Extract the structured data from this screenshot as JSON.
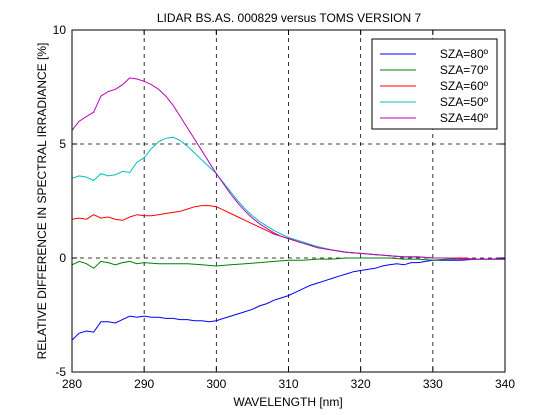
{
  "chart_data": {
    "type": "line",
    "title": "LIDAR BS.AS. 000829 versus TOMS VERSION 7",
    "xlabel": "WAVELENGTH [nm]",
    "ylabel": "RELATIVE DIFFERENCE IN SPECTRAL IRRADIANCE [%]",
    "xlim": [
      280,
      340
    ],
    "ylim": [
      -5,
      10
    ],
    "xticks": [
      280,
      290,
      300,
      310,
      320,
      330,
      340
    ],
    "yticks": [
      -5,
      0,
      5,
      10
    ],
    "x_grid": "dashed",
    "y_grid_lines": [
      0,
      5
    ],
    "legend_position": "top-right",
    "series": [
      {
        "name": "SZA=80º",
        "color": "#0000ff",
        "x": [
          280,
          281,
          282,
          283,
          284,
          285,
          286,
          287,
          288,
          289,
          290,
          291,
          292,
          293,
          294,
          295,
          296,
          297,
          298,
          299,
          300,
          301,
          302,
          303,
          304,
          305,
          306,
          307,
          308,
          309,
          310,
          311,
          312,
          313,
          314,
          315,
          316,
          317,
          318,
          319,
          320,
          321,
          322,
          323,
          324,
          325,
          326,
          327,
          328,
          329,
          330,
          332,
          334,
          336,
          338,
          340
        ],
        "y": [
          -3.6,
          -3.3,
          -3.2,
          -3.25,
          -2.8,
          -2.8,
          -2.85,
          -2.7,
          -2.55,
          -2.6,
          -2.55,
          -2.6,
          -2.6,
          -2.65,
          -2.65,
          -2.7,
          -2.7,
          -2.75,
          -2.75,
          -2.8,
          -2.75,
          -2.65,
          -2.55,
          -2.45,
          -2.35,
          -2.25,
          -2.1,
          -2.0,
          -1.85,
          -1.75,
          -1.65,
          -1.5,
          -1.35,
          -1.2,
          -1.1,
          -1.0,
          -0.9,
          -0.8,
          -0.7,
          -0.6,
          -0.55,
          -0.5,
          -0.45,
          -0.35,
          -0.3,
          -0.25,
          -0.3,
          -0.2,
          -0.2,
          -0.15,
          -0.1,
          -0.1,
          -0.1,
          -0.05,
          -0.05,
          0.0
        ]
      },
      {
        "name": "SZA=70º",
        "color": "#008000",
        "x": [
          280,
          281,
          282,
          283,
          284,
          285,
          286,
          287,
          288,
          289,
          290,
          292,
          294,
          296,
          298,
          300,
          302,
          304,
          306,
          308,
          310,
          312,
          314,
          316,
          318,
          320,
          322,
          324,
          326,
          328,
          330,
          332,
          334,
          336,
          338,
          340
        ],
        "y": [
          -0.3,
          -0.15,
          -0.25,
          -0.45,
          -0.15,
          -0.2,
          -0.3,
          -0.2,
          -0.15,
          -0.25,
          -0.2,
          -0.25,
          -0.25,
          -0.25,
          -0.3,
          -0.35,
          -0.3,
          -0.25,
          -0.2,
          -0.15,
          -0.1,
          -0.1,
          -0.05,
          -0.05,
          0.0,
          0.0,
          0.0,
          0.0,
          -0.05,
          -0.05,
          -0.1,
          -0.05,
          -0.05,
          -0.05,
          -0.05,
          -0.05
        ]
      },
      {
        "name": "SZA=60º",
        "color": "#ff0000",
        "x": [
          280,
          281,
          282,
          283,
          284,
          285,
          286,
          287,
          288,
          289,
          290,
          291,
          292,
          293,
          294,
          295,
          296,
          297,
          298,
          299,
          300,
          301,
          302,
          303,
          304,
          305,
          306,
          307,
          308,
          309,
          310,
          312,
          314,
          316,
          318,
          320,
          322,
          324,
          326,
          328,
          330,
          332,
          334,
          336,
          338,
          340
        ],
        "y": [
          1.7,
          1.75,
          1.7,
          1.9,
          1.75,
          1.8,
          1.7,
          1.65,
          1.8,
          1.9,
          1.85,
          1.85,
          1.9,
          1.95,
          2.0,
          2.05,
          2.15,
          2.25,
          2.3,
          2.3,
          2.25,
          2.1,
          1.95,
          1.8,
          1.65,
          1.5,
          1.35,
          1.2,
          1.05,
          0.95,
          0.85,
          0.65,
          0.5,
          0.35,
          0.25,
          0.2,
          0.15,
          0.1,
          0.05,
          0.05,
          0.0,
          0.0,
          0.0,
          -0.05,
          -0.05,
          -0.05
        ]
      },
      {
        "name": "SZA=50º",
        "color": "#00bfbf",
        "x": [
          280,
          281,
          282,
          283,
          284,
          285,
          286,
          287,
          288,
          289,
          290,
          291,
          292,
          293,
          294,
          295,
          296,
          297,
          298,
          299,
          300,
          301,
          302,
          303,
          304,
          305,
          306,
          307,
          308,
          309,
          310,
          312,
          314,
          316,
          318,
          320,
          322,
          324,
          326,
          328,
          330,
          332,
          334,
          336,
          338,
          340
        ],
        "y": [
          3.5,
          3.6,
          3.55,
          3.4,
          3.7,
          3.6,
          3.65,
          3.8,
          3.75,
          4.2,
          4.4,
          4.8,
          5.1,
          5.25,
          5.3,
          5.15,
          4.9,
          4.6,
          4.3,
          4.0,
          3.7,
          3.3,
          2.9,
          2.5,
          2.15,
          1.85,
          1.6,
          1.4,
          1.2,
          1.05,
          0.9,
          0.7,
          0.5,
          0.35,
          0.25,
          0.2,
          0.15,
          0.1,
          0.05,
          0.05,
          0.0,
          0.0,
          -0.05,
          -0.05,
          -0.05,
          -0.05
        ]
      },
      {
        "name": "SZA=40º",
        "color": "#bf00bf",
        "x": [
          280,
          281,
          282,
          283,
          284,
          285,
          286,
          287,
          288,
          289,
          290,
          291,
          292,
          293,
          294,
          295,
          296,
          297,
          298,
          299,
          300,
          301,
          302,
          303,
          304,
          305,
          306,
          307,
          308,
          309,
          310,
          312,
          314,
          316,
          318,
          320,
          322,
          324,
          326,
          328,
          330,
          332,
          334,
          336,
          338,
          340
        ],
        "y": [
          5.6,
          6.0,
          6.2,
          6.4,
          7.1,
          7.3,
          7.4,
          7.6,
          7.9,
          7.85,
          7.75,
          7.6,
          7.4,
          7.1,
          6.7,
          6.2,
          5.7,
          5.2,
          4.7,
          4.2,
          3.7,
          3.25,
          2.8,
          2.4,
          2.05,
          1.75,
          1.5,
          1.3,
          1.1,
          0.95,
          0.85,
          0.65,
          0.45,
          0.35,
          0.25,
          0.2,
          0.15,
          0.1,
          0.05,
          0.05,
          0.0,
          0.0,
          -0.05,
          -0.05,
          -0.05,
          -0.05
        ]
      }
    ]
  }
}
